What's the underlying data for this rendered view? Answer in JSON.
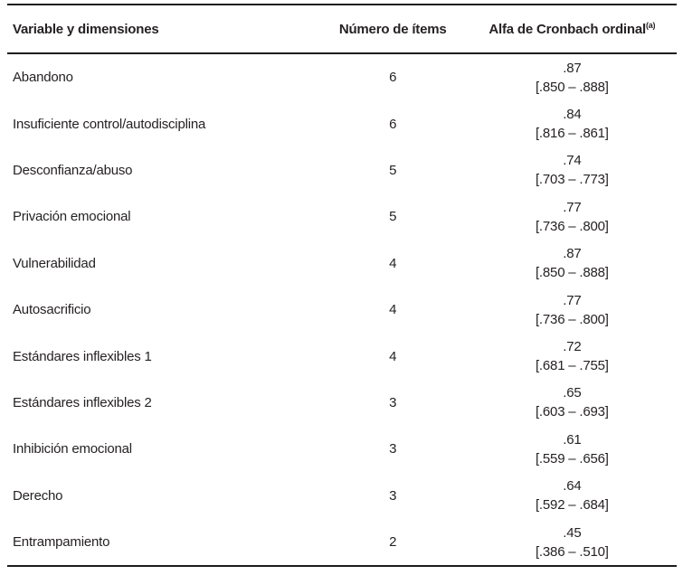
{
  "page": {
    "background": "#ffffff",
    "text_color": "#262223",
    "rule_color": "#1c1c1c"
  },
  "table": {
    "headers": {
      "variable": "Variable y dimensiones",
      "items": "Número de ítems",
      "alpha": "Alfa de Cronbach ordinal",
      "alpha_superscript": "(a)"
    },
    "rows": [
      {
        "variable": "Abandono",
        "items": "6",
        "alpha": ".87",
        "ci": "[.850 – .888]"
      },
      {
        "variable": "Insuficiente control/autodisciplina",
        "items": "6",
        "alpha": ".84",
        "ci": "[.816 – .861]"
      },
      {
        "variable": "Desconfianza/abuso",
        "items": "5",
        "alpha": ".74",
        "ci": "[.703 – .773]"
      },
      {
        "variable": "Privación emocional",
        "items": "5",
        "alpha": ".77",
        "ci": "[.736 – .800]"
      },
      {
        "variable": "Vulnerabilidad",
        "items": "4",
        "alpha": ".87",
        "ci": "[.850 – .888]"
      },
      {
        "variable": "Autosacrificio",
        "items": "4",
        "alpha": ".77",
        "ci": "[.736 – .800]"
      },
      {
        "variable": "Estándares inflexibles 1",
        "items": "4",
        "alpha": ".72",
        "ci": "[.681 – .755]"
      },
      {
        "variable": "Estándares inflexibles 2",
        "items": "3",
        "alpha": ".65",
        "ci": "[.603 – .693]"
      },
      {
        "variable": "Inhibición emocional",
        "items": "3",
        "alpha": ".61",
        "ci": "[.559 – .656]"
      },
      {
        "variable": "Derecho",
        "items": "3",
        "alpha": ".64",
        "ci": "[.592 – .684]"
      },
      {
        "variable": "Entrampamiento",
        "items": "2",
        "alpha": ".45",
        "ci": "[.386 – .510]"
      }
    ]
  }
}
